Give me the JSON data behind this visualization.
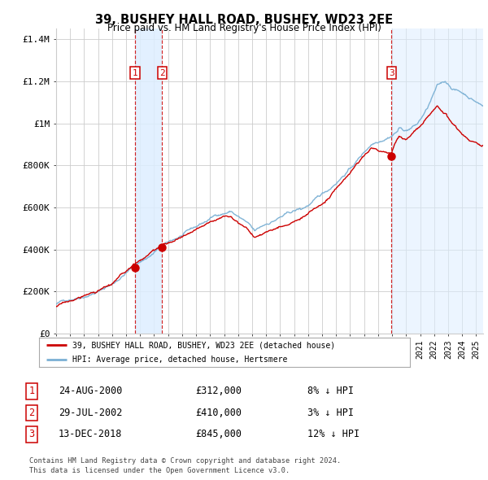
{
  "title": "39, BUSHEY HALL ROAD, BUSHEY, WD23 2EE",
  "subtitle": "Price paid vs. HM Land Registry's House Price Index (HPI)",
  "legend_line1": "39, BUSHEY HALL ROAD, BUSHEY, WD23 2EE (detached house)",
  "legend_line2": "HPI: Average price, detached house, Hertsmere",
  "sale_labels": [
    "1",
    "2",
    "3"
  ],
  "sale_dates_num": [
    2000.646,
    2002.573,
    2018.954
  ],
  "sale_prices": [
    312000,
    410000,
    845000
  ],
  "sale_dates_str": [
    "24-AUG-2000",
    "29-JUL-2002",
    "13-DEC-2018"
  ],
  "sale_prices_str": [
    "£312,000",
    "£410,000",
    "£845,000"
  ],
  "sale_pct_str": [
    "8% ↓ HPI",
    "3% ↓ HPI",
    "12% ↓ HPI"
  ],
  "xmin": 1995.0,
  "xmax": 2025.5,
  "ymin": 0,
  "ymax": 1450000,
  "yticks": [
    0,
    200000,
    400000,
    600000,
    800000,
    1000000,
    1200000,
    1400000
  ],
  "ytick_labels": [
    "£0",
    "£200K",
    "£400K",
    "£600K",
    "£800K",
    "£1M",
    "£1.2M",
    "£1.4M"
  ],
  "grid_color": "#cccccc",
  "red_color": "#cc0000",
  "blue_color": "#7ab0d4",
  "shade_color": "#ddeeff",
  "bg_color": "#ffffff",
  "footnote1": "Contains HM Land Registry data © Crown copyright and database right 2024.",
  "footnote2": "This data is licensed under the Open Government Licence v3.0."
}
